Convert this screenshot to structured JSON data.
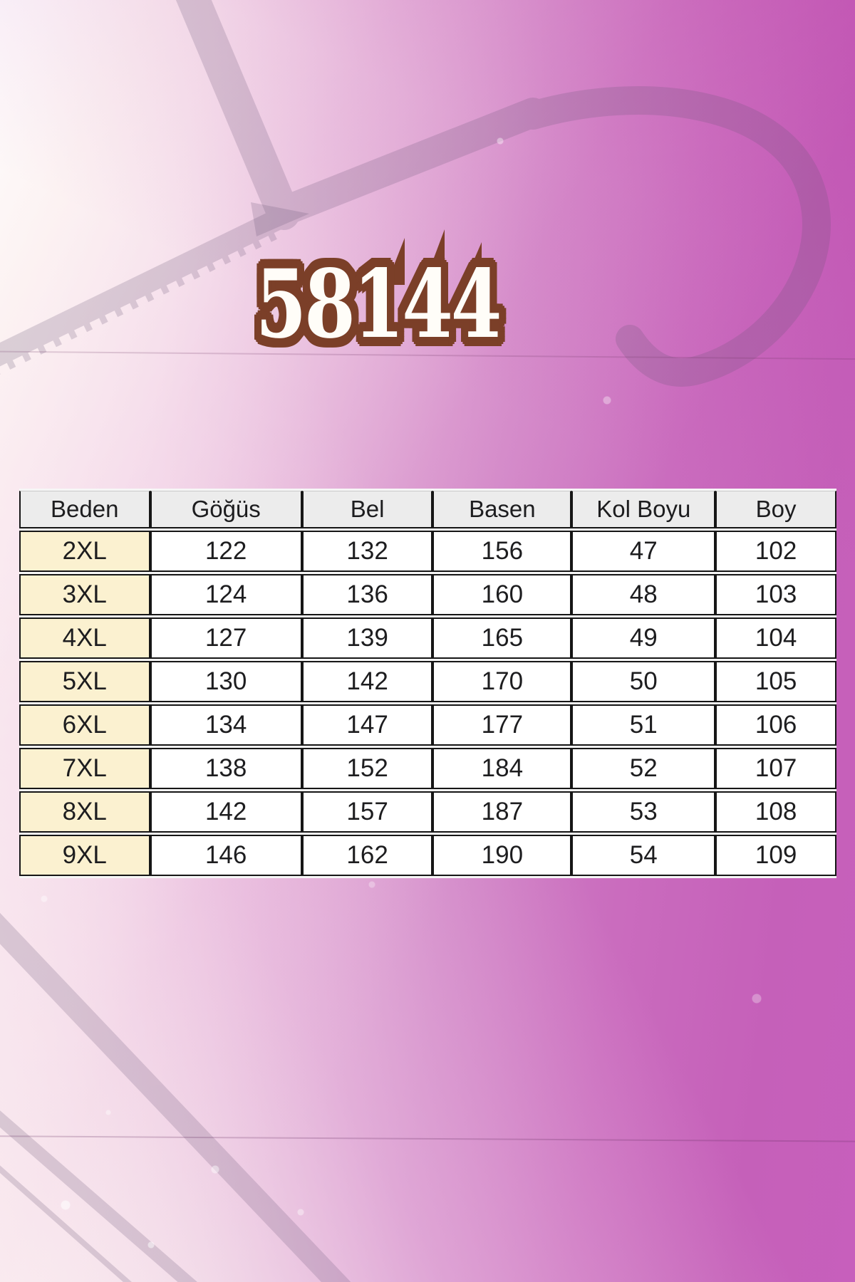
{
  "product_code": "58144",
  "watermark_icon": "clothes-hanger-icon",
  "chart_data": {
    "type": "table",
    "title": "58144",
    "columns": [
      "Beden",
      "Göğüs",
      "Bel",
      "Basen",
      "Kol Boyu",
      "Boy"
    ],
    "rows": [
      [
        "2XL",
        "122",
        "132",
        "156",
        "47",
        "102"
      ],
      [
        "3XL",
        "124",
        "136",
        "160",
        "48",
        "103"
      ],
      [
        "4XL",
        "127",
        "139",
        "165",
        "49",
        "104"
      ],
      [
        "5XL",
        "130",
        "142",
        "170",
        "50",
        "105"
      ],
      [
        "6XL",
        "134",
        "147",
        "177",
        "51",
        "106"
      ],
      [
        "7XL",
        "138",
        "152",
        "184",
        "52",
        "107"
      ],
      [
        "8XL",
        "142",
        "157",
        "187",
        "53",
        "108"
      ],
      [
        "9XL",
        "146",
        "162",
        "190",
        "54",
        "109"
      ]
    ],
    "layout": {
      "grid": true,
      "header_row": true,
      "first_column_highlight": true
    }
  },
  "colors": {
    "badge_text": "#fffdf8",
    "badge_outline": "#7b3f28",
    "table_header_bg": "#ececec",
    "size_column_bg": "#fbf1d0",
    "cell_bg": "#ffffff",
    "table_border": "#161616",
    "background_magenta": "#c75fbc",
    "background_light": "#f6ecec"
  }
}
